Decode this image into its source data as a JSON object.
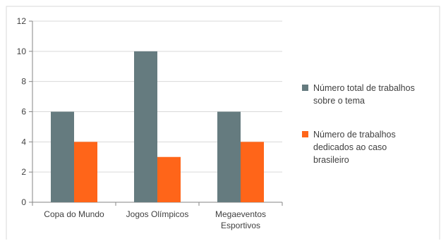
{
  "chart_data": {
    "type": "bar",
    "categories": [
      [
        "Copa do Mundo"
      ],
      [
        "Jogos Olímpicos"
      ],
      [
        "Megaeventos",
        "Esportivos"
      ]
    ],
    "series": [
      {
        "name": [
          "Número total de trabalhos",
          "sobre o tema"
        ],
        "values": [
          6,
          10,
          6
        ],
        "color": "#657b7f"
      },
      {
        "name": [
          "Número de trabalhos",
          "dedicados ao caso",
          "brasileiro"
        ],
        "values": [
          4,
          3,
          4
        ],
        "color": "#ff6519"
      }
    ],
    "ylim": [
      0,
      12
    ],
    "yticks": [
      "0",
      "2",
      "4",
      "6",
      "8",
      "10",
      "12"
    ],
    "grid": true,
    "legend": "right"
  }
}
